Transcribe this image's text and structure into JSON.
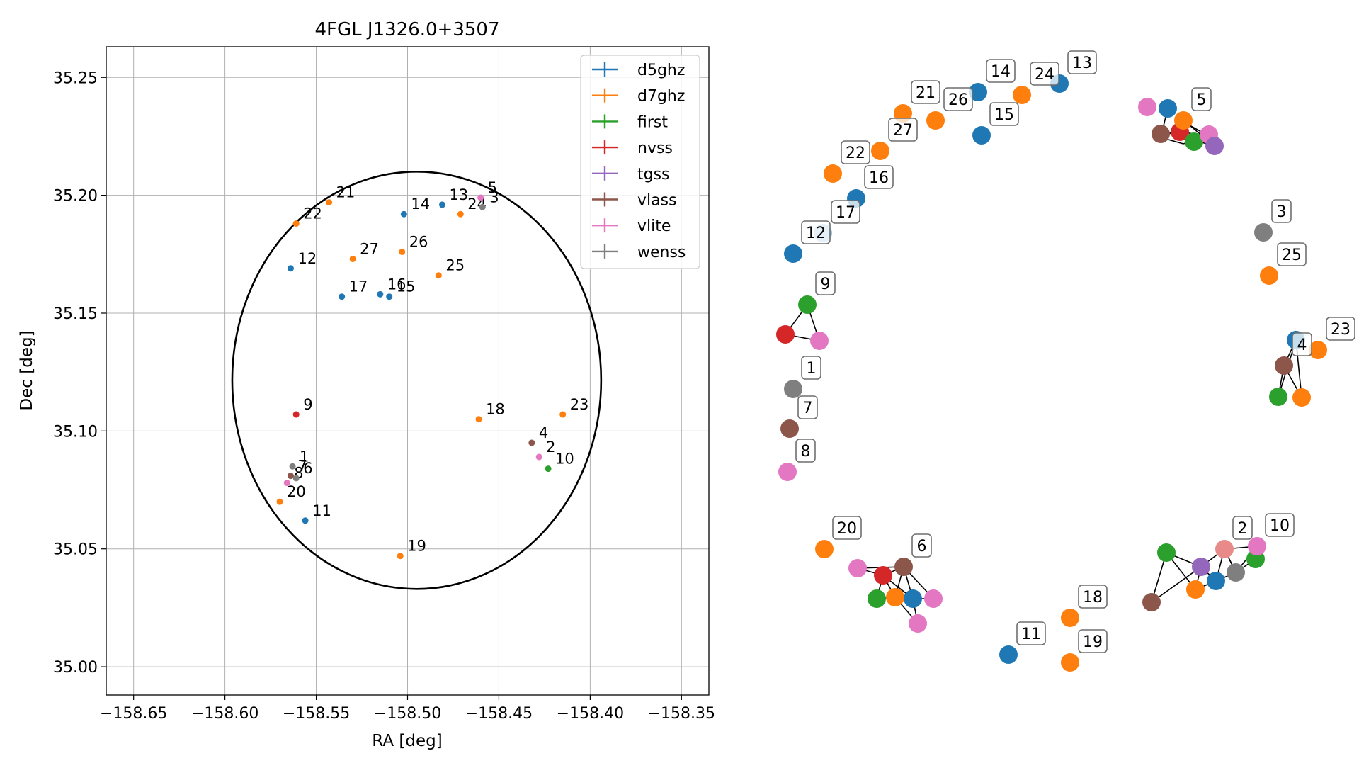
{
  "chart_data": [
    {
      "type": "scatter",
      "title": "4FGL J1326.0+3507",
      "xlabel": "RA [deg]",
      "ylabel": "Dec [deg]",
      "xlim": [
        -158.665,
        -158.335
      ],
      "ylim": [
        34.988,
        35.263
      ],
      "x_ticks": [
        -158.65,
        -158.6,
        -158.55,
        -158.5,
        -158.45,
        -158.4,
        -158.35
      ],
      "x_tick_labels": [
        "−158.65",
        "−158.60",
        "−158.55",
        "−158.50",
        "−158.45",
        "−158.40",
        "−158.35"
      ],
      "y_ticks": [
        35.0,
        35.05,
        35.1,
        35.15,
        35.2,
        35.25
      ],
      "y_tick_labels": [
        "35.00",
        "35.05",
        "35.10",
        "35.15",
        "35.20",
        "35.25"
      ],
      "grid": true,
      "legend_position": "top-right",
      "ellipse": {
        "center": [
          -158.495,
          35.1215
        ],
        "ra_radius": 0.101,
        "dec_radius": 0.0885,
        "color": "#000000"
      },
      "series": [
        {
          "name": "d5ghz",
          "color": "#1f77b4",
          "points": [
            {
              "label": "14",
              "ra": -158.502,
              "dec": 35.192
            },
            {
              "label": "13",
              "ra": -158.481,
              "dec": 35.196
            },
            {
              "label": "12",
              "ra": -158.564,
              "dec": 35.169
            },
            {
              "label": "17",
              "ra": -158.536,
              "dec": 35.157
            },
            {
              "label": "16",
              "ra": -158.515,
              "dec": 35.158
            },
            {
              "label": "15",
              "ra": -158.51,
              "dec": 35.157
            },
            {
              "label": "11",
              "ra": -158.556,
              "dec": 35.062
            }
          ]
        },
        {
          "name": "d7ghz",
          "color": "#ff7f0e",
          "points": [
            {
              "label": "21",
              "ra": -158.543,
              "dec": 35.197
            },
            {
              "label": "22",
              "ra": -158.561,
              "dec": 35.188
            },
            {
              "label": "24",
              "ra": -158.471,
              "dec": 35.192
            },
            {
              "label": "27",
              "ra": -158.53,
              "dec": 35.173
            },
            {
              "label": "26",
              "ra": -158.503,
              "dec": 35.176
            },
            {
              "label": "25",
              "ra": -158.483,
              "dec": 35.166
            },
            {
              "label": "18",
              "ra": -158.461,
              "dec": 35.105
            },
            {
              "label": "23",
              "ra": -158.415,
              "dec": 35.107
            },
            {
              "label": "20",
              "ra": -158.57,
              "dec": 35.07
            },
            {
              "label": "19",
              "ra": -158.504,
              "dec": 35.047
            }
          ]
        },
        {
          "name": "first",
          "color": "#2ca02c",
          "points": [
            {
              "label": "10",
              "ra": -158.423,
              "dec": 35.084
            }
          ]
        },
        {
          "name": "nvss",
          "color": "#d62728",
          "points": [
            {
              "label": "9",
              "ra": -158.561,
              "dec": 35.107
            }
          ]
        },
        {
          "name": "tgss",
          "color": "#9467bd",
          "points": []
        },
        {
          "name": "vlass",
          "color": "#8c564b",
          "points": [
            {
              "label": "4",
              "ra": -158.432,
              "dec": 35.095
            },
            {
              "label": "7",
              "ra": -158.564,
              "dec": 35.081
            }
          ]
        },
        {
          "name": "vlite",
          "color": "#e377c2",
          "points": [
            {
              "label": "5",
              "ra": -158.46,
              "dec": 35.199
            },
            {
              "label": "2",
              "ra": -158.428,
              "dec": 35.089
            },
            {
              "label": "8",
              "ra": -158.566,
              "dec": 35.078
            }
          ]
        },
        {
          "name": "wenss",
          "color": "#7f7f7f",
          "points": [
            {
              "label": "3",
              "ra": -158.459,
              "dec": 35.195
            },
            {
              "label": "1",
              "ra": -158.563,
              "dec": 35.085
            },
            {
              "label": "6",
              "ra": -158.561,
              "dec": 35.08
            }
          ]
        }
      ]
    },
    {
      "type": "network",
      "node_colors": {
        "blue": "#1f77b4",
        "orange": "#ff7f0e",
        "green": "#2ca02c",
        "red": "#d62728",
        "purple": "#9467bd",
        "brown": "#8c564b",
        "pink": "#e377c2",
        "gray": "#7f7f7f",
        "lightblue": "#98c0dd",
        "lightred": "#e88a8a"
      },
      "labeled_nodes": [
        {
          "label": "14",
          "color": "blue"
        },
        {
          "label": "24",
          "color": "orange"
        },
        {
          "label": "13",
          "color": "blue"
        },
        {
          "label": "21",
          "color": "orange"
        },
        {
          "label": "26",
          "color": "orange"
        },
        {
          "label": "15",
          "color": "blue"
        },
        {
          "label": "27",
          "color": "orange"
        },
        {
          "label": "22",
          "color": "orange"
        },
        {
          "label": "16",
          "color": "blue"
        },
        {
          "label": "17",
          "color": "lightblue"
        },
        {
          "label": "12",
          "color": "blue"
        },
        {
          "label": "5",
          "color": "orange"
        },
        {
          "label": "3",
          "color": "gray"
        },
        {
          "label": "25",
          "color": "orange"
        },
        {
          "label": "9",
          "color": "green"
        },
        {
          "label": "23",
          "color": "orange"
        },
        {
          "label": "4",
          "color": "brown"
        },
        {
          "label": "1",
          "color": "gray"
        },
        {
          "label": "7",
          "color": "brown"
        },
        {
          "label": "8",
          "color": "pink"
        },
        {
          "label": "20",
          "color": "orange"
        },
        {
          "label": "6",
          "color": "brown"
        },
        {
          "label": "10",
          "color": "pink"
        },
        {
          "label": "2",
          "color": "lightred"
        },
        {
          "label": "18",
          "color": "orange"
        },
        {
          "label": "11",
          "color": "blue"
        },
        {
          "label": "19",
          "color": "orange"
        }
      ]
    }
  ]
}
